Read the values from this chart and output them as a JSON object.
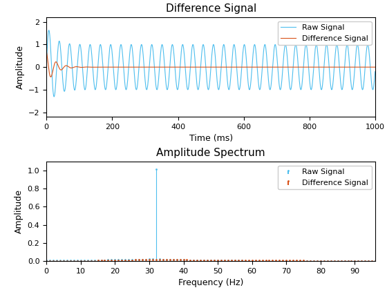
{
  "title1": "Difference Signal",
  "xlabel1": "Time (ms)",
  "ylabel1": "Amplitude",
  "title2": "Amplitude Spectrum",
  "xlabel2": "Frequency (Hz)",
  "ylabel2": "Amplitude",
  "raw_color": "#4DBEEE",
  "diff_color": "#D95319",
  "ylim1": [
    -2.2,
    2.2
  ],
  "xlim1": [
    0,
    1000
  ],
  "ylim2": [
    0,
    1.1
  ],
  "xlim2": [
    0,
    96
  ],
  "fs": 1000,
  "duration": 1.0,
  "signal_freq": 32,
  "legend1": [
    "Raw Signal",
    "Difference Signal"
  ],
  "legend2": [
    "Raw Signal",
    "Difference Signal"
  ],
  "background_color": "#ffffff"
}
